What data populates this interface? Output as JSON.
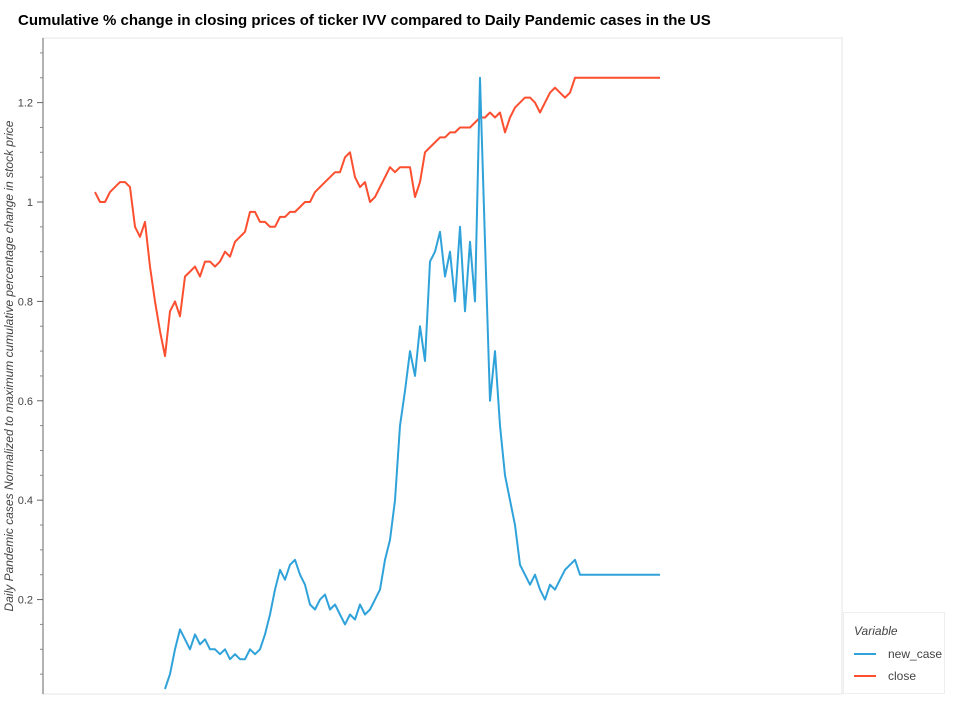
{
  "title": "Cumulative % change in closing prices of ticker IVV compared to Daily Pandemic cases in the US",
  "ylabel": "Daily Pandemic cases Normalized to maximum cumulative percentage change in stock price",
  "legend": {
    "title": "Variable",
    "items": [
      {
        "label": "new_case",
        "color": "#30a2da"
      },
      {
        "label": "close",
        "color": "#fc4f30"
      }
    ]
  },
  "chart_data": {
    "type": "line",
    "title": "Cumulative % change in closing prices of ticker IVV compared to Daily Pandemic cases in the US",
    "xlabel": "",
    "ylabel": "Daily Pandemic cases Normalized to maximum cumulative percentage change in stock price",
    "ylim": [
      0.01,
      1.33
    ],
    "y_ticks": [
      0.2,
      0.4,
      0.6,
      0.8,
      1.0,
      1.2
    ],
    "y_tick_labels": [
      "0.2",
      "0.4",
      "0.6",
      "0.8",
      "1",
      "1.2"
    ],
    "grid": false,
    "legend_position": "bottom-right",
    "x": [
      0,
      5,
      10,
      15,
      20,
      25,
      30,
      35,
      40,
      45,
      50,
      55,
      60,
      65,
      70,
      75,
      80,
      85,
      90,
      95,
      100,
      105,
      110,
      115,
      120,
      125,
      130,
      135,
      140,
      145,
      150,
      155,
      160,
      165,
      170,
      175,
      180,
      185,
      190,
      195,
      200,
      205,
      210,
      215,
      220,
      225,
      230,
      235,
      240,
      245,
      250,
      255,
      260,
      265,
      270,
      275,
      280,
      285,
      290,
      295,
      300,
      305,
      310,
      315,
      320,
      325,
      330,
      335,
      340,
      345,
      350,
      355,
      360,
      365,
      370,
      375,
      380,
      385,
      390,
      395,
      400,
      405,
      410,
      415,
      420,
      425,
      430,
      435,
      440,
      445,
      450,
      455,
      460,
      465,
      470,
      475,
      480,
      485,
      490,
      495,
      500,
      505,
      510,
      515,
      520,
      525,
      530,
      535,
      540,
      545,
      550,
      555,
      560,
      565
    ],
    "series": [
      {
        "name": "close",
        "values": [
          1.02,
          1.0,
          1.0,
          1.02,
          1.03,
          1.04,
          1.04,
          1.03,
          0.95,
          0.93,
          0.96,
          0.87,
          0.8,
          0.74,
          0.69,
          0.78,
          0.8,
          0.77,
          0.85,
          0.86,
          0.87,
          0.85,
          0.88,
          0.88,
          0.87,
          0.88,
          0.9,
          0.89,
          0.92,
          0.93,
          0.94,
          0.98,
          0.98,
          0.96,
          0.96,
          0.95,
          0.95,
          0.97,
          0.97,
          0.98,
          0.98,
          0.99,
          1.0,
          1.0,
          1.02,
          1.03,
          1.04,
          1.05,
          1.06,
          1.06,
          1.09,
          1.1,
          1.05,
          1.03,
          1.04,
          1.0,
          1.01,
          1.03,
          1.05,
          1.07,
          1.06,
          1.07,
          1.07,
          1.07,
          1.01,
          1.04,
          1.1,
          1.11,
          1.12,
          1.13,
          1.13,
          1.14,
          1.14,
          1.15,
          1.15,
          1.15,
          1.16,
          1.17,
          1.17,
          1.18,
          1.17,
          1.18,
          1.14,
          1.17,
          1.19,
          1.2,
          1.21,
          1.21,
          1.2,
          1.18,
          1.2,
          1.22,
          1.23,
          1.22,
          1.21,
          1.22,
          1.25,
          1.25,
          1.25,
          1.25,
          1.25,
          1.25,
          1.25,
          1.25,
          1.25,
          1.25,
          1.25,
          1.25,
          1.25,
          1.25,
          1.25,
          1.25,
          1.25,
          1.25
        ]
      },
      {
        "name": "new_case",
        "values": [
          0.0,
          0.0,
          0.0,
          0.0,
          0.0,
          0.0,
          0.0,
          0.0,
          0.0,
          0.0,
          0.0,
          0.0,
          0.0,
          0.0,
          0.02,
          0.05,
          0.1,
          0.14,
          0.12,
          0.1,
          0.13,
          0.11,
          0.12,
          0.1,
          0.1,
          0.09,
          0.1,
          0.08,
          0.09,
          0.08,
          0.08,
          0.1,
          0.09,
          0.1,
          0.13,
          0.17,
          0.22,
          0.26,
          0.24,
          0.27,
          0.28,
          0.25,
          0.23,
          0.19,
          0.18,
          0.2,
          0.21,
          0.18,
          0.19,
          0.17,
          0.15,
          0.17,
          0.16,
          0.19,
          0.17,
          0.18,
          0.2,
          0.22,
          0.28,
          0.32,
          0.4,
          0.55,
          0.62,
          0.7,
          0.65,
          0.75,
          0.68,
          0.88,
          0.9,
          0.94,
          0.85,
          0.9,
          0.8,
          0.95,
          0.78,
          0.92,
          0.8,
          1.25,
          0.92,
          0.6,
          0.7,
          0.55,
          0.45,
          0.4,
          0.35,
          0.27,
          0.25,
          0.23,
          0.25,
          0.22,
          0.2,
          0.23,
          0.22,
          0.24,
          0.26,
          0.27,
          0.28,
          0.25,
          0.25,
          0.25,
          0.25,
          0.25,
          0.25,
          0.25,
          0.25,
          0.25,
          0.25,
          0.25,
          0.25,
          0.25,
          0.25,
          0.25,
          0.25,
          0.25
        ]
      }
    ]
  }
}
